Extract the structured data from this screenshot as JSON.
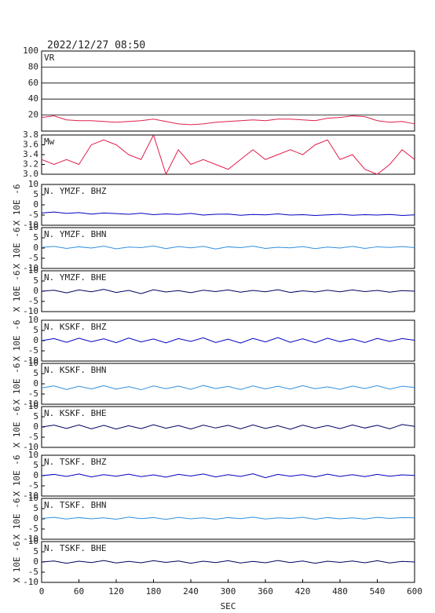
{
  "chart_data": [
    {
      "type": "line",
      "title": "2022/12/27 08:50",
      "annotation": "VR",
      "color": "#e0204a",
      "grid": true,
      "x": [
        0,
        20,
        40,
        60,
        80,
        100,
        120,
        140,
        160,
        180,
        200,
        220,
        240,
        260,
        280,
        300,
        320,
        340,
        360,
        380,
        400,
        420,
        440,
        460,
        480,
        500,
        520,
        540,
        560,
        580,
        600
      ],
      "values": [
        17,
        19,
        14,
        13,
        13,
        12,
        11,
        12,
        13,
        15,
        12,
        9,
        8,
        9,
        11,
        12,
        13,
        14,
        13,
        15,
        15,
        14,
        13,
        16,
        17,
        19,
        18,
        13,
        11,
        12,
        9
      ],
      "xlim": [
        0,
        600
      ],
      "ylim": [
        0,
        100
      ],
      "yticks": [
        20,
        40,
        60,
        80,
        100
      ]
    },
    {
      "type": "line",
      "annotation": "Mw",
      "color": "#e0204a",
      "x": [
        0,
        20,
        40,
        60,
        80,
        100,
        120,
        140,
        160,
        180,
        200,
        220,
        240,
        260,
        280,
        300,
        320,
        340,
        360,
        380,
        400,
        420,
        440,
        460,
        480,
        500,
        520,
        540,
        560,
        580,
        600
      ],
      "values": [
        3.3,
        3.2,
        3.3,
        3.2,
        3.6,
        3.7,
        3.6,
        3.4,
        3.3,
        3.8,
        3.0,
        3.5,
        3.2,
        3.3,
        3.2,
        3.1,
        3.3,
        3.5,
        3.3,
        3.4,
        3.5,
        3.4,
        3.6,
        3.7,
        3.3,
        3.4,
        3.1,
        3.0,
        3.2,
        3.5,
        3.3
      ],
      "xlim": [
        0,
        600
      ],
      "ylim": [
        3.0,
        3.8
      ],
      "yticks": [
        {
          "value": 3.0,
          "label": "3.0"
        },
        3.2,
        3.4,
        3.6,
        3.8
      ]
    },
    {
      "type": "line",
      "annotation": "N. YMZF. BHZ",
      "ylabel": "X 10E -6",
      "color": "#0000c0",
      "x": [
        0,
        20,
        40,
        60,
        80,
        100,
        120,
        140,
        160,
        180,
        200,
        220,
        240,
        260,
        280,
        300,
        320,
        340,
        360,
        380,
        400,
        420,
        440,
        460,
        480,
        500,
        520,
        540,
        560,
        580,
        600
      ],
      "values": [
        -4,
        -3.5,
        -4.2,
        -3.8,
        -4.5,
        -4,
        -4.3,
        -4.6,
        -4.1,
        -4.8,
        -4.4,
        -4.7,
        -4.2,
        -5,
        -4.6,
        -4.5,
        -5.1,
        -4.7,
        -4.9,
        -4.4,
        -5,
        -4.8,
        -5.2,
        -4.9,
        -4.6,
        -5.1,
        -4.8,
        -5,
        -4.7,
        -5.2,
        -4.9
      ],
      "xlim": [
        0,
        600
      ],
      "ylim": [
        -10,
        10
      ],
      "yticks": [
        -10,
        -5,
        0,
        5,
        10
      ]
    },
    {
      "type": "line",
      "annotation": "N. YMZF. BHN",
      "ylabel": "X 10E -6",
      "color": "#3090e0",
      "x": [
        0,
        20,
        40,
        60,
        80,
        100,
        120,
        140,
        160,
        180,
        200,
        220,
        240,
        260,
        280,
        300,
        320,
        340,
        360,
        380,
        400,
        420,
        440,
        460,
        480,
        500,
        520,
        540,
        560,
        580,
        600
      ],
      "values": [
        0.3,
        0.8,
        -0.2,
        0.6,
        0,
        0.9,
        -0.4,
        0.5,
        0.2,
        1,
        -0.3,
        0.7,
        0.1,
        0.8,
        -0.5,
        0.6,
        0.2,
        0.9,
        -0.2,
        0.4,
        0.1,
        0.7,
        -0.3,
        0.5,
        0,
        0.8,
        -0.2,
        0.6,
        0.3,
        0.7,
        0.2
      ],
      "xlim": [
        0,
        600
      ],
      "ylim": [
        -10,
        10
      ],
      "yticks": [
        -10,
        -5,
        0,
        5,
        10
      ]
    },
    {
      "type": "line",
      "annotation": "N. YMZF. BHE",
      "ylabel": "X 10E -6",
      "color": "#000060",
      "x": [
        0,
        20,
        40,
        60,
        80,
        100,
        120,
        140,
        160,
        180,
        200,
        220,
        240,
        260,
        280,
        300,
        320,
        340,
        360,
        380,
        400,
        420,
        440,
        460,
        480,
        500,
        520,
        540,
        560,
        580,
        600
      ],
      "values": [
        0,
        0.5,
        -0.8,
        0.6,
        -0.3,
        0.9,
        -0.6,
        0.4,
        -1.2,
        0.7,
        -0.4,
        0.3,
        -0.7,
        0.5,
        -0.2,
        0.6,
        -0.5,
        0.4,
        -0.3,
        0.7,
        -0.6,
        0.2,
        -0.4,
        0.5,
        -0.3,
        0.6,
        -0.2,
        0.4,
        -0.5,
        0.3,
        0
      ],
      "xlim": [
        0,
        600
      ],
      "ylim": [
        -10,
        10
      ],
      "yticks": [
        -10,
        -5,
        0,
        5,
        10
      ]
    },
    {
      "type": "line",
      "annotation": "N. KSKF. BHZ",
      "ylabel": "X 10E -6",
      "color": "#0000c0",
      "x": [
        0,
        20,
        40,
        60,
        80,
        100,
        120,
        140,
        160,
        180,
        200,
        220,
        240,
        260,
        280,
        300,
        320,
        340,
        360,
        380,
        400,
        420,
        440,
        460,
        480,
        500,
        520,
        540,
        560,
        580,
        600
      ],
      "values": [
        0,
        1,
        -0.8,
        1.2,
        -0.5,
        0.9,
        -1,
        1.3,
        -0.6,
        0.8,
        -1.1,
        1,
        -0.4,
        1.4,
        -0.9,
        0.7,
        -1.2,
        1.1,
        -0.6,
        1.5,
        -0.8,
        0.9,
        -1,
        1.2,
        -0.5,
        0.8,
        -0.9,
        1.1,
        -0.4,
        1,
        0.2
      ],
      "xlim": [
        0,
        600
      ],
      "ylim": [
        -10,
        10
      ],
      "yticks": [
        -10,
        -5,
        0,
        5,
        10
      ]
    },
    {
      "type": "line",
      "annotation": "N. KSKF. BHN",
      "ylabel": "X 10E -6",
      "color": "#3090e0",
      "x": [
        0,
        20,
        40,
        60,
        80,
        100,
        120,
        140,
        160,
        180,
        200,
        220,
        240,
        260,
        280,
        300,
        320,
        340,
        360,
        380,
        400,
        420,
        440,
        460,
        480,
        500,
        520,
        540,
        560,
        580,
        600
      ],
      "values": [
        -2,
        -1,
        -2.8,
        -1.2,
        -2.5,
        -0.9,
        -2.6,
        -1.4,
        -2.9,
        -1,
        -2.4,
        -1.1,
        -2.7,
        -0.8,
        -2.3,
        -1.3,
        -2.8,
        -1,
        -2.5,
        -1.2,
        -2.6,
        -0.9,
        -2.4,
        -1.5,
        -2.7,
        -1.1,
        -2.3,
        -0.9,
        -2.6,
        -1.2,
        -1.8
      ],
      "xlim": [
        0,
        600
      ],
      "ylim": [
        -10,
        10
      ],
      "yticks": [
        -10,
        -5,
        0,
        5,
        10
      ]
    },
    {
      "type": "line",
      "annotation": "N. KSKF. BHE",
      "ylabel": "X 10E -6",
      "color": "#000060",
      "x": [
        0,
        20,
        40,
        60,
        80,
        100,
        120,
        140,
        160,
        180,
        200,
        220,
        240,
        260,
        280,
        300,
        320,
        340,
        360,
        380,
        400,
        420,
        440,
        460,
        480,
        500,
        520,
        540,
        560,
        580,
        600
      ],
      "values": [
        0,
        0.9,
        -0.7,
        1,
        -0.9,
        0.8,
        -1,
        0.6,
        -0.8,
        1.1,
        -0.6,
        0.7,
        -1,
        0.9,
        -0.5,
        0.8,
        -0.9,
        1,
        -0.7,
        0.6,
        -1.1,
        0.9,
        -0.6,
        0.7,
        -0.8,
        1,
        -0.5,
        0.8,
        -0.9,
        1.2,
        0.3
      ],
      "xlim": [
        0,
        600
      ],
      "ylim": [
        -10,
        10
      ],
      "yticks": [
        -10,
        -5,
        0,
        5,
        10
      ]
    },
    {
      "type": "line",
      "annotation": "N. TSKF. BHZ",
      "ylabel": "X 10E -6",
      "color": "#0000c0",
      "x": [
        0,
        20,
        40,
        60,
        80,
        100,
        120,
        140,
        160,
        180,
        200,
        220,
        240,
        260,
        280,
        300,
        320,
        340,
        360,
        380,
        400,
        420,
        440,
        460,
        480,
        500,
        520,
        540,
        560,
        580,
        600
      ],
      "values": [
        0,
        0.6,
        -0.4,
        0.8,
        -0.6,
        0.5,
        -0.3,
        0.7,
        -0.5,
        0.4,
        -0.7,
        0.6,
        -0.2,
        0.8,
        -0.6,
        0.5,
        -0.4,
        0.9,
        -1,
        0.6,
        -0.3,
        0.5,
        -0.6,
        0.7,
        -0.4,
        0.5,
        -0.5,
        0.6,
        -0.3,
        0.4,
        0.1
      ],
      "xlim": [
        0,
        600
      ],
      "ylim": [
        -10,
        10
      ],
      "yticks": [
        -10,
        -5,
        0,
        5,
        10
      ]
    },
    {
      "type": "line",
      "annotation": "N. TSKF. BHN",
      "ylabel": "X 10E -6",
      "color": "#3090e0",
      "x": [
        0,
        20,
        40,
        60,
        80,
        100,
        120,
        140,
        160,
        180,
        200,
        220,
        240,
        260,
        280,
        300,
        320,
        340,
        360,
        380,
        400,
        420,
        440,
        460,
        480,
        500,
        520,
        540,
        560,
        580,
        600
      ],
      "values": [
        0.2,
        0.7,
        -0.1,
        0.6,
        0,
        0.5,
        -0.2,
        0.8,
        0.1,
        0.6,
        -0.3,
        0.7,
        0,
        0.5,
        -0.2,
        0.6,
        0.1,
        0.8,
        -0.1,
        0.5,
        0.2,
        0.7,
        -0.2,
        0.6,
        0,
        0.5,
        -0.1,
        0.7,
        0.2,
        0.6,
        0.5
      ],
      "xlim": [
        0,
        600
      ],
      "ylim": [
        -10,
        10
      ],
      "yticks": [
        -10,
        -5,
        0,
        5,
        10
      ]
    },
    {
      "type": "line",
      "annotation": "N. TSKF. BHE",
      "ylabel": "X 10E -6",
      "color": "#000060",
      "xlabel": "SEC",
      "x": [
        0,
        20,
        40,
        60,
        80,
        100,
        120,
        140,
        160,
        180,
        200,
        220,
        240,
        260,
        280,
        300,
        320,
        340,
        360,
        380,
        400,
        420,
        440,
        460,
        480,
        500,
        520,
        540,
        560,
        580,
        600
      ],
      "values": [
        0,
        0.5,
        -0.6,
        0.4,
        -0.3,
        0.7,
        -0.5,
        0.3,
        -0.4,
        0.6,
        -0.2,
        0.5,
        -0.6,
        0.4,
        -0.3,
        0.6,
        -0.5,
        0.3,
        -0.4,
        0.7,
        -0.3,
        0.5,
        -0.6,
        0.4,
        -0.2,
        0.5,
        -0.4,
        0.6,
        -0.5,
        0.3,
        0
      ],
      "xlim": [
        0,
        600
      ],
      "ylim": [
        -10,
        10
      ],
      "yticks": [
        -10,
        -5,
        0,
        5,
        10
      ],
      "xticks": [
        0,
        60,
        120,
        180,
        240,
        300,
        360,
        420,
        480,
        540,
        600
      ]
    }
  ]
}
